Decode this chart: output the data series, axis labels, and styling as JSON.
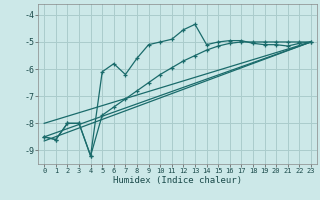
{
  "title": "",
  "xlabel": "Humidex (Indice chaleur)",
  "bg_color": "#cce8e8",
  "grid_color": "#aacccc",
  "line_color": "#1a6b6b",
  "xlim": [
    -0.5,
    23.5
  ],
  "ylim": [
    -9.5,
    -3.6
  ],
  "xticks": [
    0,
    1,
    2,
    3,
    4,
    5,
    6,
    7,
    8,
    9,
    10,
    11,
    12,
    13,
    14,
    15,
    16,
    17,
    18,
    19,
    20,
    21,
    22,
    23
  ],
  "yticks": [
    -9,
    -8,
    -7,
    -6,
    -5,
    -4
  ],
  "series1_x": [
    0,
    1,
    2,
    3,
    4,
    5,
    6,
    7,
    8,
    9,
    10,
    11,
    12,
    13,
    14,
    15,
    16,
    17,
    18,
    19,
    20,
    21,
    22,
    23
  ],
  "series1_y": [
    -8.5,
    -8.6,
    -8.0,
    -8.0,
    -9.2,
    -6.1,
    -5.8,
    -6.2,
    -5.6,
    -5.1,
    -5.0,
    -4.9,
    -4.55,
    -4.35,
    -5.1,
    -5.0,
    -4.95,
    -4.95,
    -5.05,
    -5.1,
    -5.1,
    -5.15,
    -5.05,
    -5.0
  ],
  "series2_x": [
    0,
    1,
    2,
    3,
    4,
    5,
    6,
    7,
    8,
    9,
    10,
    11,
    12,
    13,
    14,
    15,
    16,
    17,
    18,
    19,
    20,
    21,
    22,
    23
  ],
  "series2_y": [
    -8.5,
    -8.6,
    -8.0,
    -8.0,
    -9.2,
    -7.7,
    -7.4,
    -7.1,
    -6.8,
    -6.5,
    -6.2,
    -5.95,
    -5.7,
    -5.5,
    -5.3,
    -5.15,
    -5.05,
    -5.0,
    -5.0,
    -5.0,
    -5.0,
    -5.0,
    -5.0,
    -5.0
  ],
  "line3_x": [
    0,
    23
  ],
  "line3_y": [
    -8.5,
    -5.0
  ],
  "line4_x": [
    0,
    23
  ],
  "line4_y": [
    -8.65,
    -5.0
  ],
  "line5_x": [
    0,
    23
  ],
  "line5_y": [
    -8.0,
    -5.0
  ]
}
